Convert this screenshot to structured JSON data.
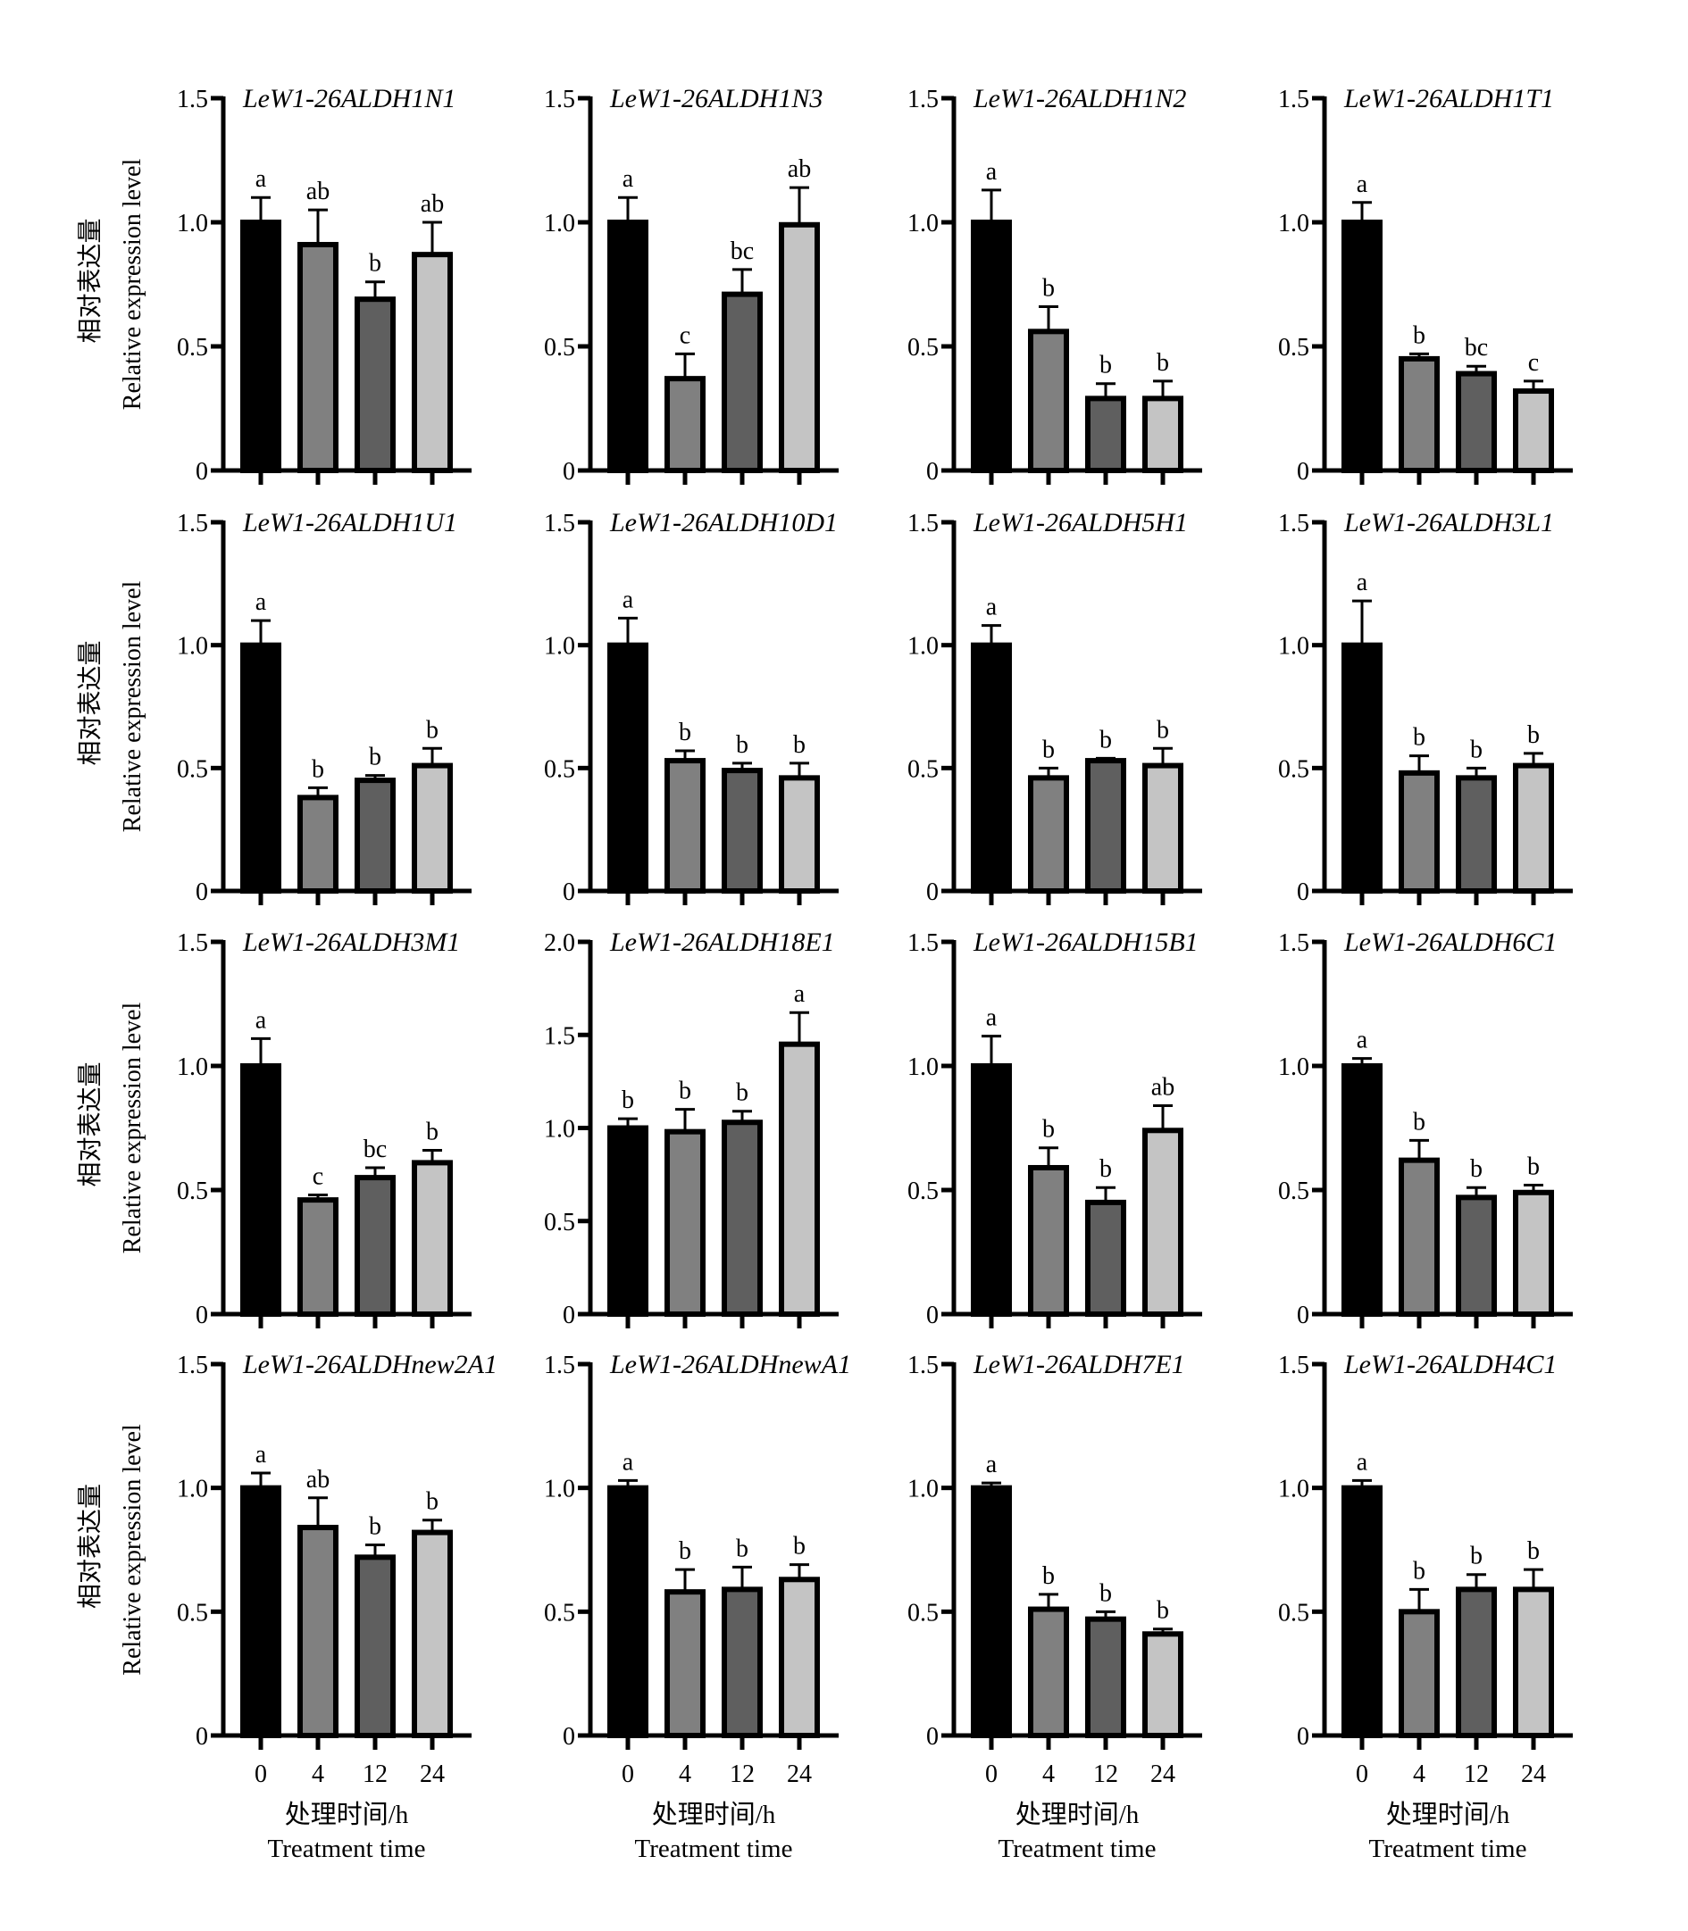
{
  "figure": {
    "y_axis_label_cn": "相对表达量",
    "y_axis_label_en": "Relative expression level",
    "x_axis_label_cn": "处理时间/h",
    "x_axis_label_en": "Treatment time",
    "bar_colors": [
      "#000000",
      "#808080",
      "#5f5f5f",
      "#c4c4c4"
    ],
    "edge_color": "#000000"
  },
  "chart_data": [
    {
      "type": "bar",
      "title": "LeW1-26ALDH1N1",
      "categories": [
        "0",
        "4",
        "12",
        "24"
      ],
      "values": [
        1.0,
        0.91,
        0.69,
        0.87
      ],
      "error_upper": [
        1.1,
        1.05,
        0.76,
        1.0
      ],
      "significance": [
        "a",
        "ab",
        "b",
        "ab"
      ],
      "ylim": [
        0,
        1.5
      ],
      "yticks": [
        "0",
        "0.5",
        "1.0",
        "1.5"
      ],
      "xlabel": "处理时间/h Treatment time",
      "ylabel": "相对表达量 Relative expression level"
    },
    {
      "type": "bar",
      "title": "LeW1-26ALDH1N3",
      "categories": [
        "0",
        "4",
        "12",
        "24"
      ],
      "values": [
        1.0,
        0.37,
        0.71,
        0.99
      ],
      "error_upper": [
        1.1,
        0.47,
        0.81,
        1.14
      ],
      "significance": [
        "a",
        "c",
        "bc",
        "ab"
      ],
      "ylim": [
        0,
        1.5
      ],
      "yticks": [
        "0",
        "0.5",
        "1.0",
        "1.5"
      ]
    },
    {
      "type": "bar",
      "title": "LeW1-26ALDH1N2",
      "categories": [
        "0",
        "4",
        "12",
        "24"
      ],
      "values": [
        1.0,
        0.56,
        0.29,
        0.29
      ],
      "error_upper": [
        1.13,
        0.66,
        0.35,
        0.36
      ],
      "significance": [
        "a",
        "b",
        "b",
        "b"
      ],
      "ylim": [
        0,
        1.5
      ],
      "yticks": [
        "0",
        "0.5",
        "1.0",
        "1.5"
      ]
    },
    {
      "type": "bar",
      "title": "LeW1-26ALDH1T1",
      "categories": [
        "0",
        "4",
        "12",
        "24"
      ],
      "values": [
        1.0,
        0.45,
        0.39,
        0.32
      ],
      "error_upper": [
        1.08,
        0.47,
        0.42,
        0.36
      ],
      "significance": [
        "a",
        "b",
        "bc",
        "c"
      ],
      "ylim": [
        0,
        1.5
      ],
      "yticks": [
        "0",
        "0.5",
        "1.0",
        "1.5"
      ]
    },
    {
      "type": "bar",
      "title": "LeW1-26ALDH1U1",
      "categories": [
        "0",
        "4",
        "12",
        "24"
      ],
      "values": [
        1.0,
        0.38,
        0.45,
        0.51
      ],
      "error_upper": [
        1.1,
        0.42,
        0.47,
        0.58
      ],
      "significance": [
        "a",
        "b",
        "b",
        "b"
      ],
      "ylim": [
        0,
        1.5
      ],
      "yticks": [
        "0",
        "0.5",
        "1.0",
        "1.5"
      ]
    },
    {
      "type": "bar",
      "title": "LeW1-26ALDH10D1",
      "categories": [
        "0",
        "4",
        "12",
        "24"
      ],
      "values": [
        1.0,
        0.53,
        0.49,
        0.46
      ],
      "error_upper": [
        1.11,
        0.57,
        0.52,
        0.52
      ],
      "significance": [
        "a",
        "b",
        "b",
        "b"
      ],
      "ylim": [
        0,
        1.5
      ],
      "yticks": [
        "0",
        "0.5",
        "1.0",
        "1.5"
      ]
    },
    {
      "type": "bar",
      "title": "LeW1-26ALDH5H1",
      "categories": [
        "0",
        "4",
        "12",
        "24"
      ],
      "values": [
        1.0,
        0.46,
        0.53,
        0.51
      ],
      "error_upper": [
        1.08,
        0.5,
        0.54,
        0.58
      ],
      "significance": [
        "a",
        "b",
        "b",
        "b"
      ],
      "ylim": [
        0,
        1.5
      ],
      "yticks": [
        "0",
        "0.5",
        "1.0",
        "1.5"
      ]
    },
    {
      "type": "bar",
      "title": "LeW1-26ALDH3L1",
      "categories": [
        "0",
        "4",
        "12",
        "24"
      ],
      "values": [
        1.0,
        0.48,
        0.46,
        0.51
      ],
      "error_upper": [
        1.18,
        0.55,
        0.5,
        0.56
      ],
      "significance": [
        "a",
        "b",
        "b",
        "b"
      ],
      "ylim": [
        0,
        1.5
      ],
      "yticks": [
        "0",
        "0.5",
        "1.0",
        "1.5"
      ]
    },
    {
      "type": "bar",
      "title": "LeW1-26ALDH3M1",
      "categories": [
        "0",
        "4",
        "12",
        "24"
      ],
      "values": [
        1.0,
        0.46,
        0.55,
        0.61
      ],
      "error_upper": [
        1.11,
        0.48,
        0.59,
        0.66
      ],
      "significance": [
        "a",
        "c",
        "bc",
        "b"
      ],
      "ylim": [
        0,
        1.5
      ],
      "yticks": [
        "0",
        "0.5",
        "1.0",
        "1.5"
      ]
    },
    {
      "type": "bar",
      "title": "LeW1-26ALDH18E1",
      "categories": [
        "0",
        "4",
        "12",
        "24"
      ],
      "values": [
        1.0,
        0.98,
        1.03,
        1.45
      ],
      "error_upper": [
        1.05,
        1.1,
        1.09,
        1.62
      ],
      "significance": [
        "b",
        "b",
        "b",
        "a"
      ],
      "ylim": [
        0,
        2.0
      ],
      "yticks": [
        "0",
        "0.5",
        "1.0",
        "1.5",
        "2.0"
      ]
    },
    {
      "type": "bar",
      "title": "LeW1-26ALDH15B1",
      "categories": [
        "0",
        "4",
        "12",
        "24"
      ],
      "values": [
        1.0,
        0.59,
        0.45,
        0.74
      ],
      "error_upper": [
        1.12,
        0.67,
        0.51,
        0.84
      ],
      "significance": [
        "a",
        "b",
        "b",
        "ab"
      ],
      "ylim": [
        0,
        1.5
      ],
      "yticks": [
        "0",
        "0.5",
        "1.0",
        "1.5"
      ]
    },
    {
      "type": "bar",
      "title": "LeW1-26ALDH6C1",
      "categories": [
        "0",
        "4",
        "12",
        "24"
      ],
      "values": [
        1.0,
        0.62,
        0.47,
        0.49
      ],
      "error_upper": [
        1.03,
        0.7,
        0.51,
        0.52
      ],
      "significance": [
        "a",
        "b",
        "b",
        "b"
      ],
      "ylim": [
        0,
        1.5
      ],
      "yticks": [
        "0",
        "0.5",
        "1.0",
        "1.5"
      ]
    },
    {
      "type": "bar",
      "title": "LeW1-26ALDHnew2A1",
      "categories": [
        "0",
        "4",
        "12",
        "24"
      ],
      "values": [
        1.0,
        0.84,
        0.72,
        0.82
      ],
      "error_upper": [
        1.06,
        0.96,
        0.77,
        0.87
      ],
      "significance": [
        "a",
        "ab",
        "b",
        "b"
      ],
      "ylim": [
        0,
        1.5
      ],
      "yticks": [
        "0",
        "0.5",
        "1.0",
        "1.5"
      ]
    },
    {
      "type": "bar",
      "title": "LeW1-26ALDHnewA1",
      "categories": [
        "0",
        "4",
        "12",
        "24"
      ],
      "values": [
        1.0,
        0.58,
        0.59,
        0.63
      ],
      "error_upper": [
        1.03,
        0.67,
        0.68,
        0.69
      ],
      "significance": [
        "a",
        "b",
        "b",
        "b"
      ],
      "ylim": [
        0,
        1.5
      ],
      "yticks": [
        "0",
        "0.5",
        "1.0",
        "1.5"
      ]
    },
    {
      "type": "bar",
      "title": "LeW1-26ALDH7E1",
      "categories": [
        "0",
        "4",
        "12",
        "24"
      ],
      "values": [
        1.0,
        0.51,
        0.47,
        0.41
      ],
      "error_upper": [
        1.02,
        0.57,
        0.5,
        0.43
      ],
      "significance": [
        "a",
        "b",
        "b",
        "b"
      ],
      "ylim": [
        0,
        1.5
      ],
      "yticks": [
        "0",
        "0.5",
        "1.0",
        "1.5"
      ]
    },
    {
      "type": "bar",
      "title": "LeW1-26ALDH4C1",
      "categories": [
        "0",
        "4",
        "12",
        "24"
      ],
      "values": [
        1.0,
        0.5,
        0.59,
        0.59
      ],
      "error_upper": [
        1.03,
        0.59,
        0.65,
        0.67
      ],
      "significance": [
        "a",
        "b",
        "b",
        "b"
      ],
      "ylim": [
        0,
        1.5
      ],
      "yticks": [
        "0",
        "0.5",
        "1.0",
        "1.5"
      ]
    }
  ]
}
